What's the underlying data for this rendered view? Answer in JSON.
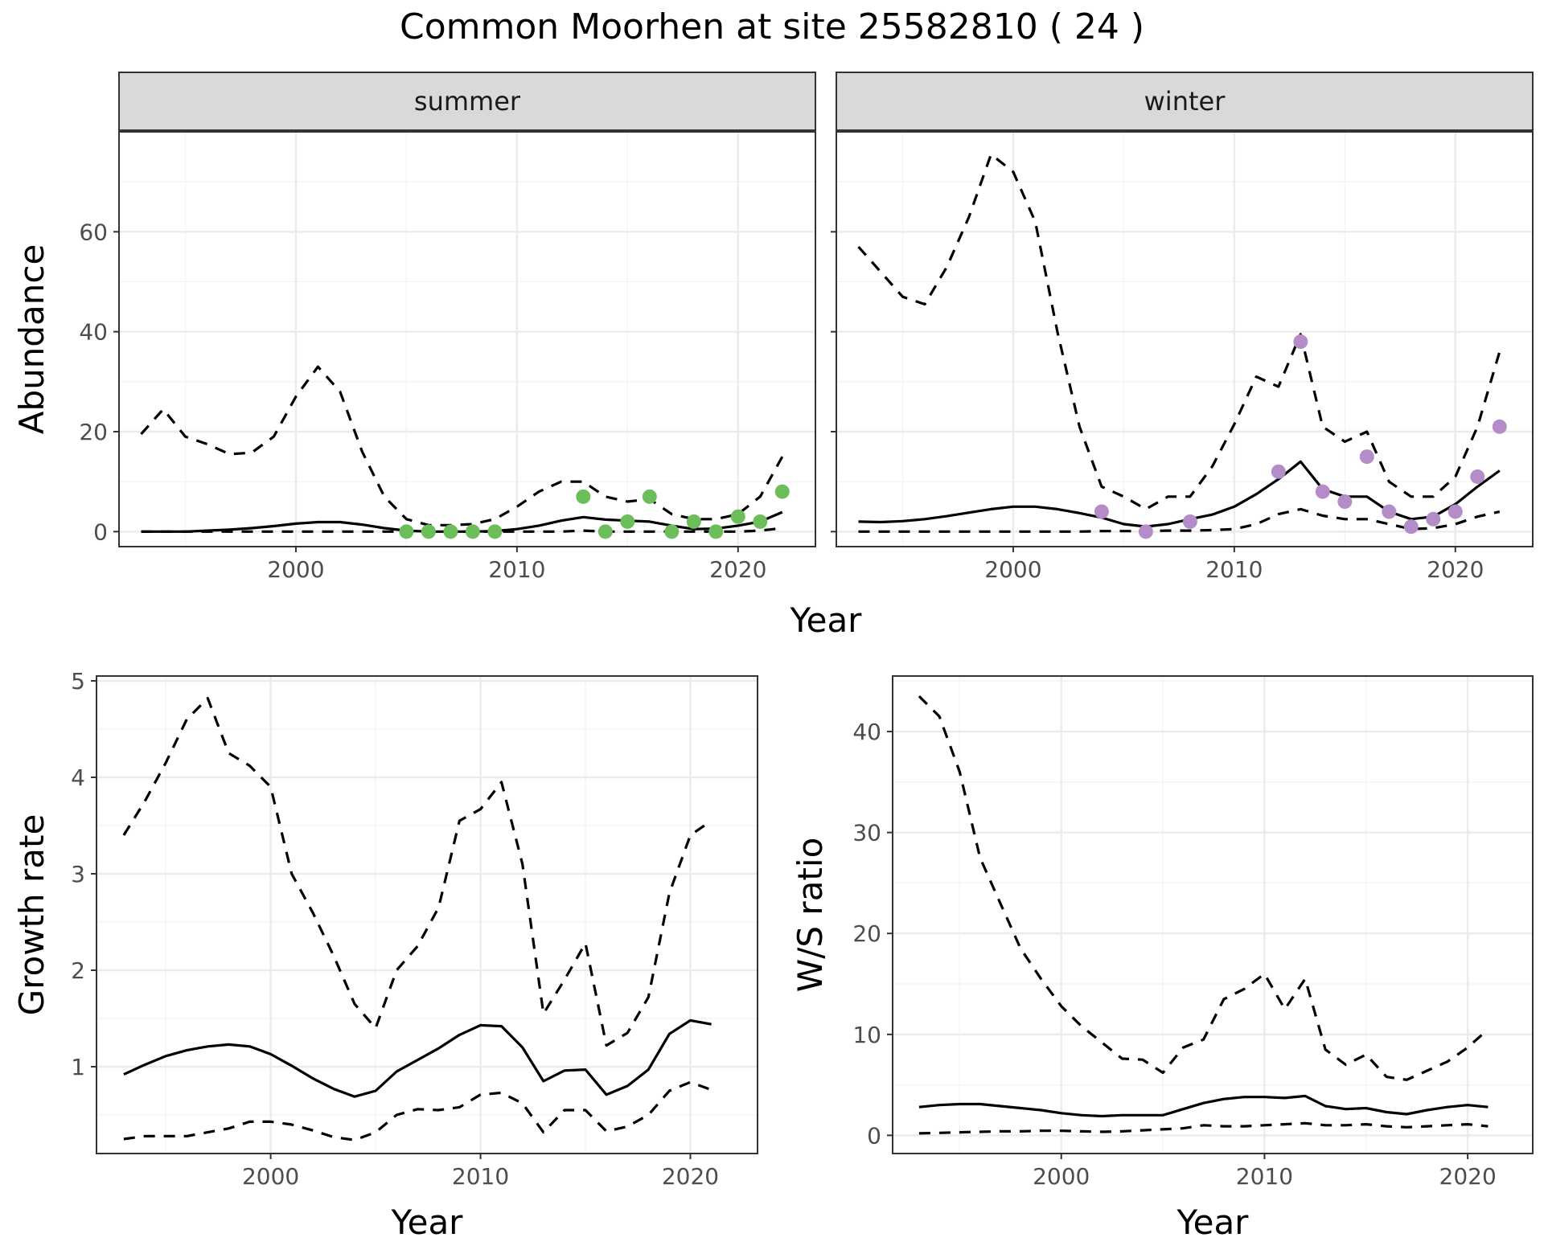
{
  "title": "Common Moorhen at site 25582810 ( 24 )",
  "colors": {
    "summer_points": "#6cbe5a",
    "winter_points": "#b48cc8"
  },
  "chart_data": [
    {
      "id": "abundance",
      "type": "line",
      "facets": [
        "summer",
        "winter"
      ],
      "xlabel": "Year",
      "ylabel": "Abundance",
      "xlim": [
        1992,
        2023.5
      ],
      "ylim": [
        -3,
        80
      ],
      "xticks": [
        2000,
        2010,
        2020
      ],
      "yticks": [
        0,
        20,
        40,
        60
      ],
      "panels": [
        {
          "strip": "summer",
          "x": [
            1993,
            1994,
            1995,
            1996,
            1997,
            1998,
            1999,
            2000,
            2001,
            2002,
            2003,
            2004,
            2005,
            2006,
            2007,
            2008,
            2009,
            2010,
            2011,
            2012,
            2013,
            2014,
            2015,
            2016,
            2017,
            2018,
            2019,
            2020,
            2021,
            2022
          ],
          "mean": [
            0,
            0,
            0,
            0.2,
            0.4,
            0.7,
            1.1,
            1.6,
            1.9,
            1.9,
            1.4,
            0.7,
            0.2,
            0,
            0,
            0,
            0.1,
            0.5,
            1.2,
            2.2,
            2.9,
            2.4,
            2.2,
            2.0,
            1.2,
            0.5,
            0.6,
            1.2,
            2.0,
            3.9
          ],
          "upper": [
            19.5,
            24.5,
            19.0,
            17.5,
            15.5,
            15.8,
            19.0,
            27.0,
            33.0,
            28.0,
            16.0,
            7.0,
            2.5,
            1.3,
            1.3,
            1.5,
            2.5,
            5.0,
            8.0,
            10.0,
            10.0,
            7.0,
            6.0,
            6.5,
            3.5,
            2.5,
            2.5,
            3.5,
            7.0,
            15.0
          ],
          "lower": [
            0,
            0,
            0,
            0,
            0,
            0,
            0,
            0,
            0,
            0,
            0,
            0,
            0,
            0,
            0,
            0,
            0,
            0,
            0,
            0,
            0.2,
            0,
            0,
            0,
            0,
            0,
            0,
            0,
            0.2,
            0.7
          ],
          "points": {
            "x": [
              2005,
              2006,
              2007,
              2008,
              2009,
              2013,
              2014,
              2015,
              2016,
              2017,
              2018,
              2019,
              2020,
              2021,
              2022
            ],
            "y": [
              0,
              0,
              0,
              0,
              0,
              7,
              0,
              2,
              7,
              0,
              2,
              0,
              3,
              2,
              8
            ]
          }
        },
        {
          "strip": "winter",
          "x": [
            1993,
            1994,
            1995,
            1996,
            1997,
            1998,
            1999,
            2000,
            2001,
            2002,
            2003,
            2004,
            2005,
            2006,
            2007,
            2008,
            2009,
            2010,
            2011,
            2012,
            2013,
            2014,
            2015,
            2016,
            2017,
            2018,
            2019,
            2020,
            2021,
            2022
          ],
          "mean": [
            2.0,
            1.9,
            2.1,
            2.5,
            3.1,
            3.8,
            4.5,
            5.0,
            5.0,
            4.5,
            3.7,
            2.8,
            1.5,
            1.0,
            1.5,
            2.5,
            3.4,
            5.0,
            7.5,
            10.5,
            14.0,
            8.5,
            7.0,
            7.0,
            4.0,
            2.5,
            3.0,
            5.5,
            9.0,
            12.2
          ],
          "upper": [
            57,
            52,
            47,
            45.5,
            53,
            63,
            75.5,
            72,
            62,
            40,
            21,
            9,
            7,
            4.5,
            7,
            7,
            13,
            21.5,
            31,
            29,
            39.5,
            21,
            18,
            20,
            10,
            7,
            7,
            11,
            21,
            36
          ],
          "lower": [
            0,
            0,
            0,
            0,
            0,
            0,
            0,
            0,
            0,
            0,
            0,
            0.1,
            0.1,
            0.1,
            0.2,
            0.2,
            0.3,
            0.5,
            1.5,
            3.5,
            4.5,
            3.2,
            2.5,
            2.5,
            1.5,
            0.5,
            0.7,
            1.5,
            3.0,
            4.0
          ],
          "points": {
            "x": [
              2004,
              2006,
              2008,
              2012,
              2013,
              2014,
              2015,
              2016,
              2017,
              2018,
              2019,
              2020,
              2021,
              2022
            ],
            "y": [
              4,
              0,
              2,
              12,
              38,
              8,
              6,
              15,
              4,
              1,
              2.5,
              4,
              11,
              21
            ]
          }
        }
      ]
    },
    {
      "id": "growth",
      "type": "line",
      "xlabel": "Year",
      "ylabel": "Growth rate",
      "xlim": [
        1991.7,
        2023.2
      ],
      "ylim": [
        0.1,
        5.05
      ],
      "xticks": [
        2000,
        2010,
        2020
      ],
      "yticks": [
        1,
        2,
        3,
        4,
        5
      ],
      "x": [
        1993,
        1994,
        1995,
        1996,
        1997,
        1998,
        1999,
        2000,
        2001,
        2002,
        2003,
        2004,
        2005,
        2006,
        2007,
        2008,
        2009,
        2010,
        2011,
        2012,
        2013,
        2014,
        2015,
        2016,
        2017,
        2018,
        2019,
        2020,
        2021
      ],
      "mean": [
        0.92,
        1.02,
        1.11,
        1.17,
        1.21,
        1.23,
        1.21,
        1.13,
        1.01,
        0.88,
        0.77,
        0.69,
        0.75,
        0.95,
        1.07,
        1.19,
        1.33,
        1.43,
        1.42,
        1.2,
        0.85,
        0.96,
        0.97,
        0.71,
        0.8,
        0.97,
        1.34,
        1.48,
        1.44
      ],
      "upper": [
        3.4,
        3.75,
        4.15,
        4.6,
        4.82,
        4.25,
        4.12,
        3.9,
        3.0,
        2.6,
        2.15,
        1.65,
        1.4,
        2.0,
        2.25,
        2.65,
        3.55,
        3.67,
        3.95,
        3.1,
        1.55,
        1.9,
        2.28,
        1.22,
        1.35,
        1.72,
        2.8,
        3.4,
        3.55
      ],
      "lower": [
        0.25,
        0.28,
        0.28,
        0.28,
        0.32,
        0.36,
        0.43,
        0.43,
        0.4,
        0.34,
        0.27,
        0.24,
        0.32,
        0.5,
        0.56,
        0.55,
        0.58,
        0.71,
        0.73,
        0.62,
        0.32,
        0.55,
        0.55,
        0.33,
        0.38,
        0.5,
        0.75,
        0.84,
        0.76
      ]
    },
    {
      "id": "ratio",
      "type": "line",
      "xlabel": "Year",
      "ylabel": "W/S ratio",
      "xlim": [
        1991.7,
        2023.2
      ],
      "ylim": [
        -1.8,
        45.5
      ],
      "xticks": [
        2000,
        2010,
        2020
      ],
      "yticks": [
        0,
        10,
        20,
        30,
        40
      ],
      "x": [
        1993,
        1994,
        1995,
        1996,
        1997,
        1998,
        1999,
        2000,
        2001,
        2002,
        2003,
        2004,
        2005,
        2006,
        2007,
        2008,
        2009,
        2010,
        2011,
        2012,
        2013,
        2014,
        2015,
        2016,
        2017,
        2018,
        2019,
        2020,
        2021
      ],
      "mean": [
        2.8,
        3.0,
        3.1,
        3.1,
        2.9,
        2.7,
        2.5,
        2.2,
        2.0,
        1.9,
        2.0,
        2.0,
        2.0,
        2.6,
        3.2,
        3.6,
        3.8,
        3.8,
        3.7,
        3.9,
        2.9,
        2.6,
        2.7,
        2.3,
        2.1,
        2.5,
        2.8,
        3.0,
        2.8
      ],
      "upper": [
        43.5,
        41.5,
        36,
        27.5,
        23,
        18.5,
        15.5,
        12.8,
        10.8,
        9.2,
        7.6,
        7.5,
        6.2,
        8.7,
        9.5,
        13.5,
        14.5,
        16.0,
        12.5,
        15.5,
        8.5,
        7.0,
        8.0,
        5.8,
        5.5,
        6.4,
        7.3,
        8.7,
        10.5
      ],
      "lower": [
        0.2,
        0.25,
        0.3,
        0.35,
        0.4,
        0.4,
        0.45,
        0.45,
        0.4,
        0.35,
        0.4,
        0.5,
        0.6,
        0.7,
        1.0,
        0.9,
        0.9,
        1.0,
        1.1,
        1.2,
        1.0,
        1.0,
        1.1,
        0.9,
        0.8,
        0.9,
        1.0,
        1.1,
        0.9
      ]
    }
  ]
}
